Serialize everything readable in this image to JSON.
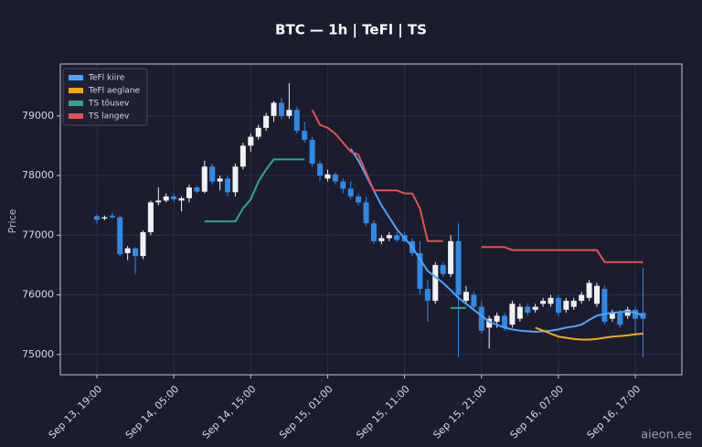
{
  "chart_data": {
    "type": "candlestick",
    "title": "BTC — 1h  |  TeFl  |  TS",
    "y_label": "Price",
    "watermark": "aieon.ee",
    "x": [
      "Sep 13, 19:00",
      "Sep 13, 20:00",
      "Sep 13, 21:00",
      "Sep 13, 22:00",
      "Sep 13, 23:00",
      "Sep 14, 00:00",
      "Sep 14, 01:00",
      "Sep 14, 02:00",
      "Sep 14, 03:00",
      "Sep 14, 04:00",
      "Sep 14, 05:00",
      "Sep 14, 06:00",
      "Sep 14, 07:00",
      "Sep 14, 08:00",
      "Sep 14, 09:00",
      "Sep 14, 10:00",
      "Sep 14, 11:00",
      "Sep 14, 12:00",
      "Sep 14, 13:00",
      "Sep 14, 14:00",
      "Sep 14, 15:00",
      "Sep 14, 16:00",
      "Sep 14, 17:00",
      "Sep 14, 18:00",
      "Sep 14, 19:00",
      "Sep 14, 20:00",
      "Sep 14, 21:00",
      "Sep 14, 22:00",
      "Sep 14, 23:00",
      "Sep 15, 00:00",
      "Sep 15, 01:00",
      "Sep 15, 02:00",
      "Sep 15, 03:00",
      "Sep 15, 04:00",
      "Sep 15, 05:00",
      "Sep 15, 06:00",
      "Sep 15, 07:00",
      "Sep 15, 08:00",
      "Sep 15, 09:00",
      "Sep 15, 10:00",
      "Sep 15, 11:00",
      "Sep 15, 12:00",
      "Sep 15, 13:00",
      "Sep 15, 14:00",
      "Sep 15, 15:00",
      "Sep 15, 16:00",
      "Sep 15, 17:00",
      "Sep 15, 18:00",
      "Sep 15, 19:00",
      "Sep 15, 20:00",
      "Sep 15, 21:00",
      "Sep 15, 22:00",
      "Sep 15, 23:00",
      "Sep 16, 00:00",
      "Sep 16, 01:00",
      "Sep 16, 02:00",
      "Sep 16, 03:00",
      "Sep 16, 04:00",
      "Sep 16, 05:00",
      "Sep 16, 06:00",
      "Sep 16, 07:00",
      "Sep 16, 08:00",
      "Sep 16, 09:00",
      "Sep 16, 10:00",
      "Sep 16, 11:00",
      "Sep 16, 12:00",
      "Sep 16, 13:00",
      "Sep 16, 14:00",
      "Sep 16, 15:00",
      "Sep 16, 16:00",
      "Sep 16, 17:00",
      "Sep 16, 18:00"
    ],
    "xticks": [
      "Sep 13, 19:00",
      "Sep 14, 05:00",
      "Sep 14, 15:00",
      "Sep 15, 01:00",
      "Sep 15, 11:00",
      "Sep 15, 21:00",
      "Sep 16, 07:00",
      "Sep 16, 17:00"
    ],
    "open": [
      77320,
      77280,
      77330,
      77300,
      76700,
      76780,
      76650,
      77050,
      77550,
      77580,
      77650,
      77580,
      77620,
      77800,
      77730,
      78150,
      77900,
      77950,
      77720,
      78150,
      78500,
      78650,
      78800,
      79000,
      79220,
      79000,
      79100,
      78750,
      78600,
      78200,
      77950,
      78020,
      77900,
      77780,
      77650,
      77550,
      77200,
      76900,
      76950,
      77000,
      77000,
      76900,
      76700,
      76100,
      75900,
      76500,
      76350,
      76900,
      75900,
      76000,
      75800,
      75450,
      75550,
      75650,
      75500,
      75600,
      75800,
      75750,
      75850,
      75850,
      75950,
      75750,
      75800,
      75900,
      75950,
      75850,
      76100,
      75600,
      75700,
      75650,
      75750,
      75700
    ],
    "high": [
      77350,
      77330,
      77380,
      77330,
      76820,
      76800,
      77080,
      77580,
      77800,
      77700,
      77700,
      77650,
      77850,
      77830,
      78250,
      78200,
      78000,
      78000,
      78200,
      78550,
      78700,
      78850,
      79050,
      79250,
      79300,
      79550,
      79150,
      78900,
      78650,
      78250,
      78100,
      78050,
      77950,
      77900,
      77700,
      77650,
      77250,
      77000,
      77050,
      77050,
      77050,
      76950,
      76900,
      76250,
      76550,
      76550,
      77000,
      77200,
      76150,
      76050,
      75900,
      75650,
      75700,
      75700,
      75900,
      75850,
      75850,
      75850,
      75950,
      76000,
      76000,
      75950,
      75950,
      76050,
      76250,
      76200,
      76150,
      75750,
      75750,
      75800,
      75800,
      76450
    ],
    "low": [
      77200,
      77250,
      77280,
      76650,
      76580,
      76350,
      76600,
      77000,
      77500,
      77550,
      77560,
      77400,
      77550,
      77700,
      77700,
      77850,
      77750,
      77650,
      77650,
      78100,
      78400,
      78600,
      78750,
      78900,
      78950,
      78950,
      78700,
      78550,
      78150,
      77900,
      77900,
      77850,
      77700,
      77600,
      77500,
      77150,
      76850,
      76850,
      76900,
      76880,
      76880,
      76650,
      76000,
      75550,
      75850,
      76300,
      76300,
      74950,
      75850,
      75750,
      75350,
      75100,
      75450,
      75400,
      75450,
      75550,
      75650,
      75700,
      75800,
      75800,
      75650,
      75700,
      75750,
      75850,
      75900,
      75800,
      75500,
      75550,
      75450,
      75600,
      75300,
      74950
    ],
    "close": [
      77260,
      77300,
      77300,
      76680,
      76780,
      76650,
      77050,
      77550,
      77580,
      77650,
      77600,
      77620,
      77800,
      77730,
      78150,
      77900,
      77950,
      77720,
      78150,
      78500,
      78650,
      78800,
      79000,
      79220,
      79000,
      79100,
      78750,
      78600,
      78200,
      78000,
      78020,
      77900,
      77780,
      77650,
      77550,
      77200,
      76900,
      76950,
      77000,
      76920,
      76900,
      76700,
      76100,
      75900,
      76500,
      76350,
      76900,
      76000,
      76050,
      75800,
      75400,
      75600,
      75650,
      75450,
      75850,
      75800,
      75700,
      75800,
      75900,
      75950,
      75700,
      75900,
      75900,
      76000,
      76200,
      76150,
      75550,
      75700,
      75500,
      75750,
      75600,
      75600
    ],
    "up_color": "#f2f2f5",
    "down_color": "#2e8ae6",
    "series": [
      {
        "name": "TeFl kiire",
        "color": "#4da3ff",
        "values": [
          null,
          null,
          null,
          null,
          null,
          null,
          null,
          null,
          null,
          null,
          null,
          null,
          null,
          null,
          null,
          null,
          null,
          null,
          null,
          null,
          null,
          null,
          null,
          null,
          null,
          null,
          null,
          null,
          null,
          null,
          null,
          null,
          null,
          78450,
          78250,
          78000,
          77750,
          77500,
          77300,
          77100,
          76950,
          76800,
          76600,
          76400,
          76300,
          76200,
          76080,
          75950,
          75850,
          75750,
          75650,
          75550,
          75500,
          75450,
          75420,
          75400,
          75390,
          75380,
          75390,
          75400,
          75420,
          75450,
          75470,
          75500,
          75580,
          75650,
          75680,
          75700,
          75710,
          75720,
          75700,
          75650
        ]
      },
      {
        "name": "TeFl aeglane",
        "color": "#f0a818",
        "values": [
          null,
          null,
          null,
          null,
          null,
          null,
          null,
          null,
          null,
          null,
          null,
          null,
          null,
          null,
          null,
          null,
          null,
          null,
          null,
          null,
          null,
          null,
          null,
          null,
          null,
          null,
          null,
          null,
          null,
          null,
          null,
          null,
          null,
          null,
          null,
          null,
          null,
          null,
          null,
          null,
          null,
          null,
          null,
          null,
          null,
          null,
          null,
          null,
          null,
          null,
          null,
          null,
          null,
          null,
          null,
          null,
          null,
          75450,
          75400,
          75350,
          75300,
          75280,
          75260,
          75250,
          75250,
          75260,
          75280,
          75300,
          75310,
          75320,
          75340,
          75350
        ]
      },
      {
        "name": "TS tõusev",
        "color": "#2fa88a",
        "values": [
          null,
          null,
          null,
          null,
          null,
          null,
          null,
          null,
          null,
          null,
          null,
          null,
          null,
          null,
          77230,
          77230,
          77230,
          77230,
          77230,
          77450,
          77600,
          77900,
          78100,
          78270,
          78270,
          78270,
          78270,
          78270,
          null,
          null,
          null,
          null,
          null,
          null,
          null,
          null,
          null,
          null,
          null,
          null,
          null,
          null,
          null,
          null,
          null,
          null,
          75780,
          75780,
          75780,
          null,
          null,
          null,
          null,
          null,
          null,
          null,
          null,
          null,
          null,
          null,
          null,
          null,
          null,
          null,
          null,
          null,
          null,
          null,
          null,
          null,
          null,
          null
        ]
      },
      {
        "name": "TS langev",
        "color": "#e05252",
        "values": [
          null,
          null,
          null,
          null,
          null,
          null,
          null,
          null,
          null,
          null,
          null,
          null,
          null,
          null,
          null,
          null,
          null,
          null,
          null,
          null,
          null,
          null,
          null,
          null,
          null,
          null,
          null,
          null,
          79100,
          78850,
          78800,
          78700,
          78550,
          78400,
          78350,
          78050,
          77750,
          77750,
          77750,
          77750,
          77700,
          77700,
          77450,
          76900,
          76900,
          76900,
          null,
          null,
          null,
          null,
          76800,
          76800,
          76800,
          76800,
          76750,
          76750,
          76750,
          76750,
          76750,
          76750,
          76750,
          76750,
          76750,
          76750,
          76750,
          76750,
          76550,
          76550,
          76550,
          76550,
          76550,
          76550
        ]
      }
    ],
    "ylim": [
      74660,
      79870
    ],
    "yticks": [
      75000,
      76000,
      77000,
      78000,
      79000
    ],
    "grid": true,
    "legend": "upper left"
  }
}
